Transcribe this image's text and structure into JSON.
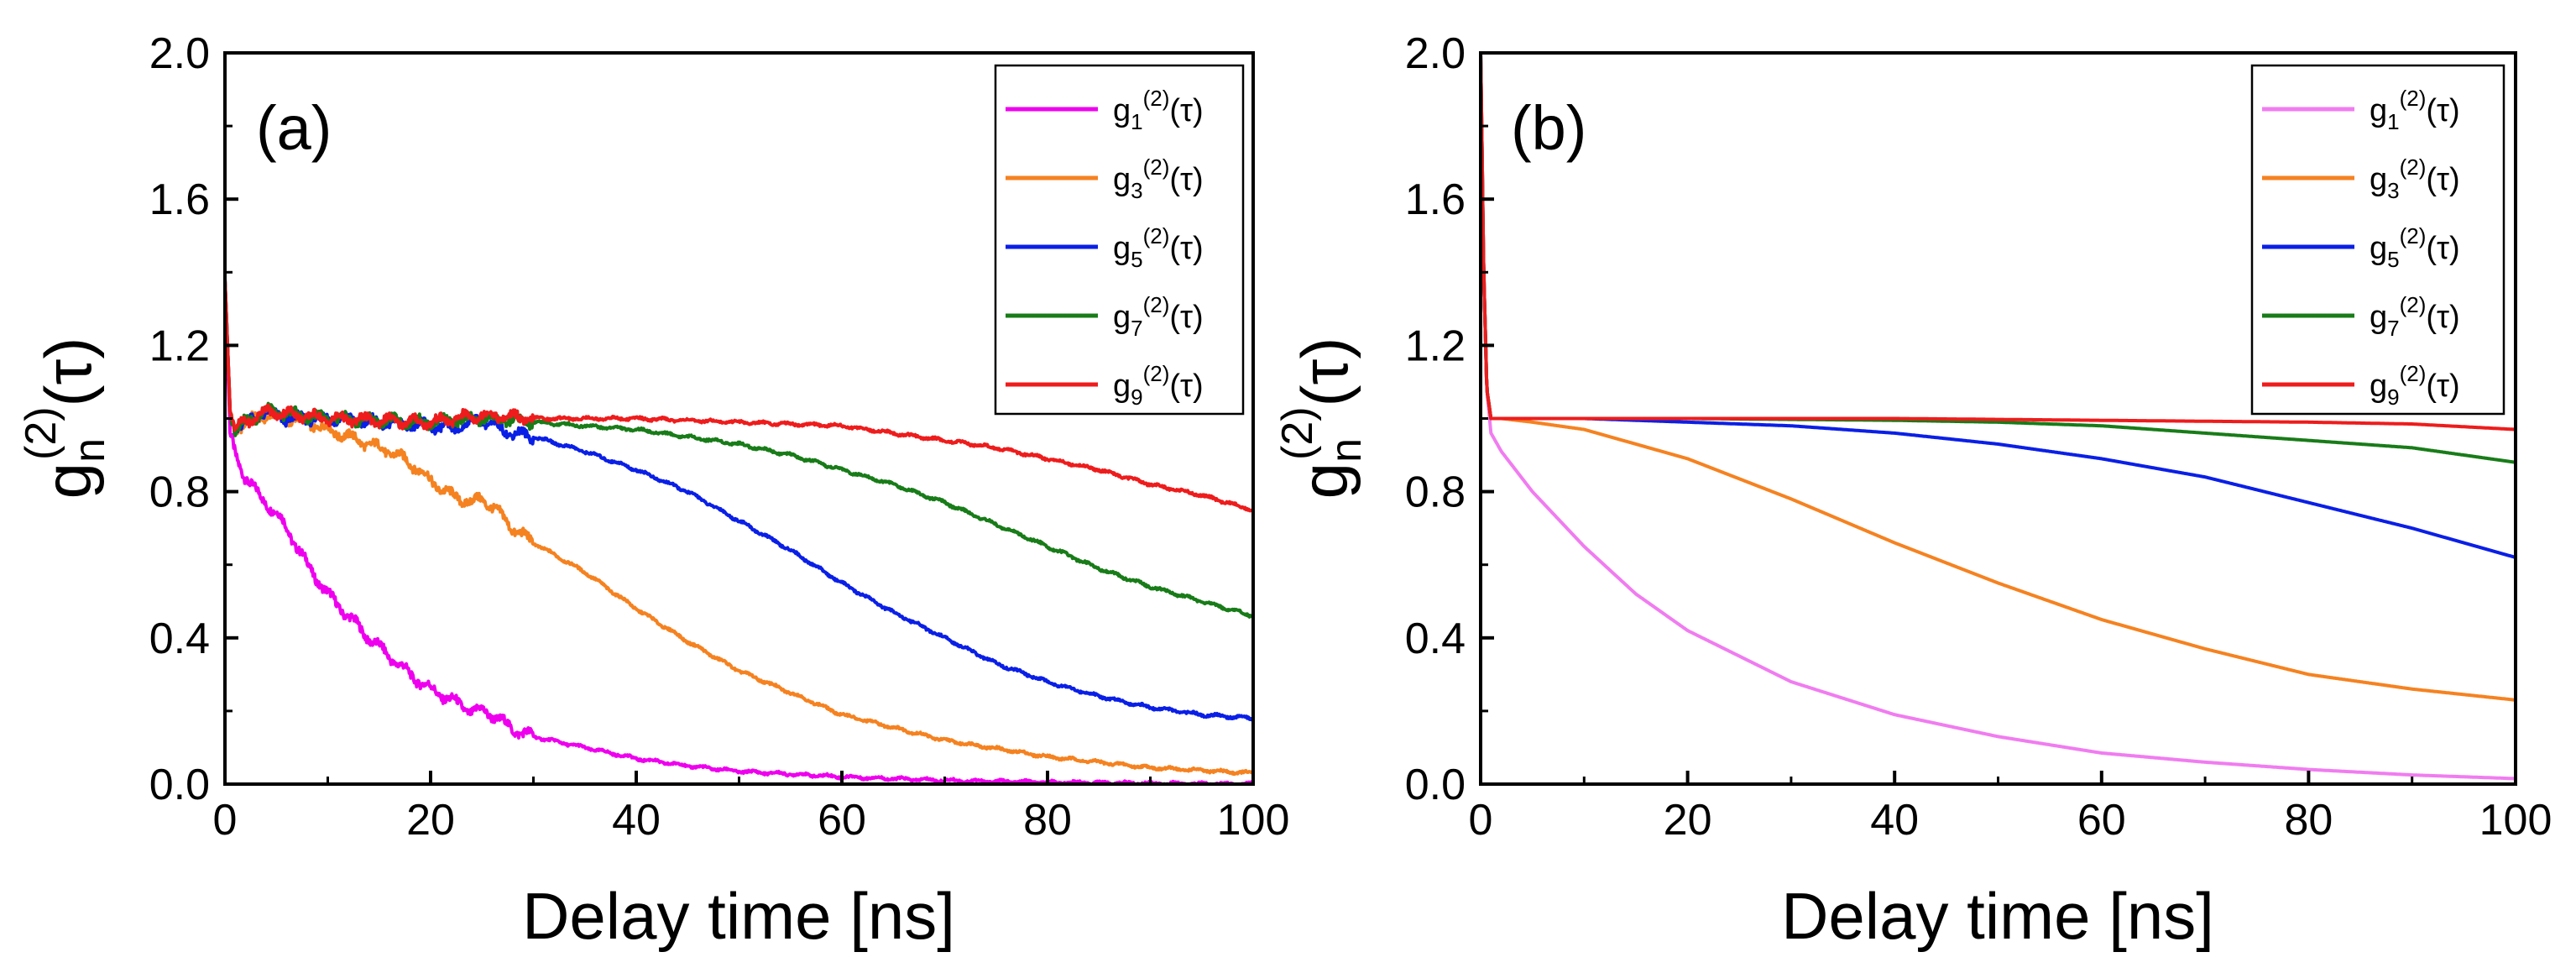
{
  "figure": {
    "layout": "two side-by-side panels"
  },
  "chart_data": [
    {
      "panel_label": "(a)",
      "type": "line",
      "title": "",
      "xlabel": "Delay time [ns]",
      "ylabel": {
        "base": "g",
        "sub": "n",
        "sup": "(2)",
        "arg": "(τ)"
      },
      "xlim": [
        0,
        100
      ],
      "ylim": [
        0.0,
        2.0
      ],
      "xticks": [
        "0",
        "20",
        "40",
        "60",
        "80",
        "100"
      ],
      "yticks": [
        "0.0",
        "0.4",
        "0.8",
        "1.2",
        "1.6",
        "2.0"
      ],
      "grid": false,
      "legend_position": "top-right",
      "series": [
        {
          "name": "g1(2)(τ)",
          "legend": {
            "base": "g",
            "sub": "1",
            "sup": "(2)",
            "arg": "(τ)"
          },
          "color": "#ee00ee",
          "model": "noisy",
          "x": [
            0,
            0.5,
            1,
            2,
            3,
            4,
            5,
            6,
            8,
            10,
            12,
            14,
            16,
            18,
            20,
            22,
            24,
            25,
            26,
            28,
            30,
            35,
            40,
            45,
            50,
            60,
            70,
            80,
            90,
            100
          ],
          "y": [
            1.38,
            0.96,
            0.9,
            0.84,
            0.8,
            0.77,
            0.74,
            0.7,
            0.6,
            0.52,
            0.46,
            0.4,
            0.35,
            0.3,
            0.26,
            0.23,
            0.2,
            0.2,
            0.19,
            0.15,
            0.13,
            0.1,
            0.07,
            0.05,
            0.035,
            0.02,
            0.01,
            0.005,
            0.002,
            0.0
          ]
        },
        {
          "name": "g3(2)(τ)",
          "legend": {
            "base": "g",
            "sub": "3",
            "sup": "(2)",
            "arg": "(τ)"
          },
          "color": "#f58220",
          "model": "noisy",
          "x": [
            0,
            0.5,
            1,
            2,
            4,
            6,
            8,
            10,
            12,
            14,
            16,
            18,
            20,
            22,
            24,
            25,
            26,
            28,
            30,
            35,
            40,
            45,
            50,
            60,
            70,
            80,
            90,
            100
          ],
          "y": [
            1.38,
            1.02,
            0.97,
            0.99,
            1.01,
            1.0,
            0.99,
            0.97,
            0.95,
            0.93,
            0.91,
            0.88,
            0.83,
            0.79,
            0.77,
            0.78,
            0.76,
            0.7,
            0.66,
            0.58,
            0.48,
            0.39,
            0.31,
            0.19,
            0.12,
            0.075,
            0.045,
            0.03
          ]
        },
        {
          "name": "g5(2)(τ)",
          "legend": {
            "base": "g",
            "sub": "5",
            "sup": "(2)",
            "arg": "(τ)"
          },
          "color": "#0a1fe6",
          "model": "noisy",
          "x": [
            0,
            0.5,
            1,
            2,
            4,
            6,
            10,
            15,
            20,
            22,
            24,
            25,
            26,
            28,
            30,
            35,
            40,
            45,
            50,
            55,
            60,
            65,
            70,
            75,
            80,
            85,
            90,
            95,
            100
          ],
          "y": [
            1.38,
            1.02,
            0.97,
            0.99,
            1.02,
            1.0,
            1.0,
            0.99,
            0.98,
            0.97,
            0.99,
            1.0,
            0.98,
            0.96,
            0.95,
            0.91,
            0.86,
            0.8,
            0.72,
            0.64,
            0.55,
            0.47,
            0.4,
            0.33,
            0.28,
            0.24,
            0.21,
            0.19,
            0.18
          ]
        },
        {
          "name": "g7(2)(τ)",
          "legend": {
            "base": "g",
            "sub": "7",
            "sup": "(2)",
            "arg": "(τ)"
          },
          "color": "#187c18",
          "model": "noisy",
          "x": [
            0,
            0.5,
            1,
            2,
            4,
            10,
            20,
            25,
            30,
            35,
            40,
            45,
            50,
            55,
            60,
            65,
            70,
            75,
            80,
            85,
            90,
            95,
            100
          ],
          "y": [
            1.38,
            1.02,
            0.97,
            0.99,
            1.02,
            1.0,
            0.99,
            1.0,
            0.99,
            0.98,
            0.97,
            0.95,
            0.93,
            0.9,
            0.86,
            0.82,
            0.77,
            0.71,
            0.65,
            0.59,
            0.54,
            0.5,
            0.46
          ]
        },
        {
          "name": "g9(2)(τ)",
          "legend": {
            "base": "g",
            "sub": "9",
            "sup": "(2)",
            "arg": "(τ)"
          },
          "color": "#ee1c1c",
          "model": "noisy",
          "x": [
            0,
            0.5,
            1,
            2,
            4,
            10,
            20,
            25,
            30,
            40,
            50,
            60,
            65,
            70,
            75,
            80,
            85,
            90,
            95,
            100
          ],
          "y": [
            1.38,
            1.02,
            0.97,
            0.99,
            1.02,
            1.0,
            0.99,
            1.01,
            1.0,
            1.0,
            0.99,
            0.98,
            0.96,
            0.94,
            0.92,
            0.89,
            0.86,
            0.82,
            0.79,
            0.75
          ]
        }
      ]
    },
    {
      "panel_label": "(b)",
      "type": "line",
      "title": "",
      "xlabel": "Delay time [ns]",
      "ylabel": {
        "base": "g",
        "sub": "n",
        "sup": "(2)",
        "arg": "(τ)"
      },
      "xlim": [
        0,
        100
      ],
      "ylim": [
        0.0,
        2.0
      ],
      "xticks": [
        "0",
        "20",
        "40",
        "60",
        "80",
        "100"
      ],
      "yticks": [
        "0.0",
        "0.4",
        "0.8",
        "1.2",
        "1.6",
        "2.0"
      ],
      "grid": false,
      "legend_position": "top-right",
      "series": [
        {
          "name": "g1(2)(τ)",
          "legend": {
            "base": "g",
            "sub": "1",
            "sup": "(2)",
            "arg": "(τ)"
          },
          "color": "#f07cf0",
          "model": "smooth",
          "x": [
            0,
            0.3,
            0.6,
            1,
            2,
            5,
            10,
            15,
            20,
            30,
            40,
            50,
            60,
            70,
            80,
            90,
            100
          ],
          "y": [
            2.0,
            1.4,
            1.08,
            0.96,
            0.91,
            0.8,
            0.65,
            0.52,
            0.42,
            0.28,
            0.19,
            0.13,
            0.085,
            0.06,
            0.04,
            0.025,
            0.015
          ]
        },
        {
          "name": "g3(2)(τ)",
          "legend": {
            "base": "g",
            "sub": "3",
            "sup": "(2)",
            "arg": "(τ)"
          },
          "color": "#f58220",
          "model": "smooth",
          "x": [
            0,
            0.3,
            0.6,
            1,
            2,
            5,
            10,
            20,
            30,
            40,
            50,
            60,
            70,
            80,
            90,
            100
          ],
          "y": [
            2.0,
            1.4,
            1.08,
            1.0,
            1.0,
            0.99,
            0.97,
            0.89,
            0.78,
            0.66,
            0.55,
            0.45,
            0.37,
            0.3,
            0.26,
            0.23
          ]
        },
        {
          "name": "g5(2)(τ)",
          "legend": {
            "base": "g",
            "sub": "5",
            "sup": "(2)",
            "arg": "(τ)"
          },
          "color": "#0a1fe6",
          "model": "smooth",
          "x": [
            0,
            0.3,
            0.6,
            1,
            2,
            10,
            20,
            30,
            40,
            50,
            60,
            70,
            80,
            90,
            100
          ],
          "y": [
            2.0,
            1.4,
            1.08,
            1.0,
            1.0,
            1.0,
            0.99,
            0.98,
            0.96,
            0.93,
            0.89,
            0.84,
            0.77,
            0.7,
            0.62
          ]
        },
        {
          "name": "g7(2)(τ)",
          "legend": {
            "base": "g",
            "sub": "7",
            "sup": "(2)",
            "arg": "(τ)"
          },
          "color": "#187c18",
          "model": "smooth",
          "x": [
            0,
            0.3,
            0.6,
            1,
            2,
            20,
            40,
            50,
            60,
            70,
            80,
            90,
            100
          ],
          "y": [
            2.0,
            1.4,
            1.08,
            1.0,
            1.0,
            1.0,
            0.995,
            0.99,
            0.98,
            0.96,
            0.94,
            0.92,
            0.88
          ]
        },
        {
          "name": "g9(2)(τ)",
          "legend": {
            "base": "g",
            "sub": "9",
            "sup": "(2)",
            "arg": "(τ)"
          },
          "color": "#ee1c1c",
          "model": "smooth",
          "x": [
            0,
            0.3,
            0.6,
            1,
            2,
            40,
            60,
            80,
            90,
            100
          ],
          "y": [
            2.0,
            1.4,
            1.08,
            1.0,
            1.0,
            1.0,
            0.995,
            0.99,
            0.985,
            0.97
          ]
        }
      ]
    }
  ]
}
